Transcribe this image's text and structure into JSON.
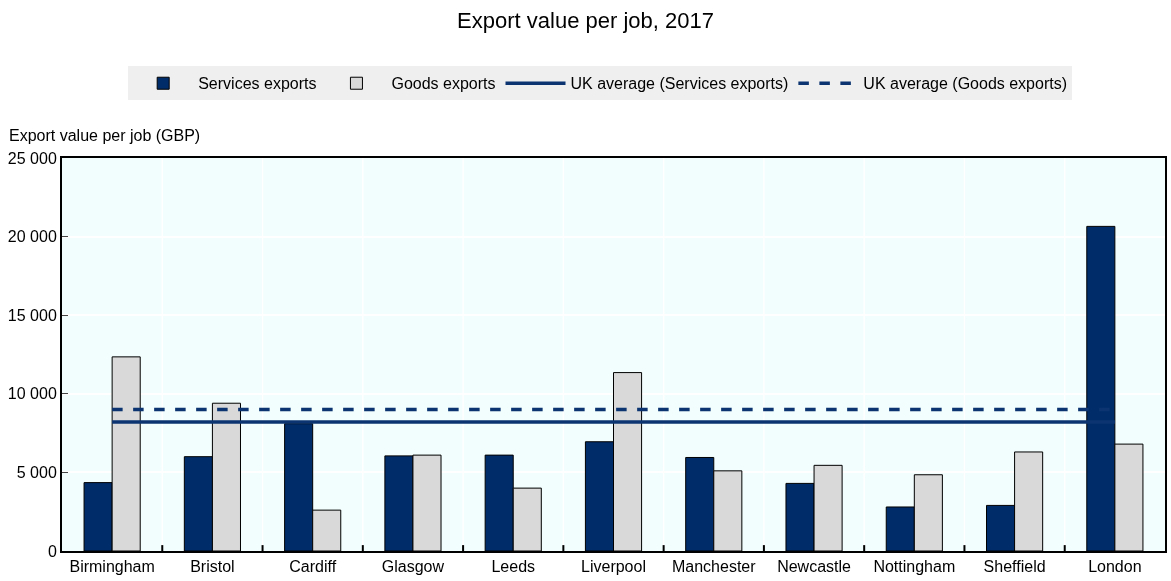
{
  "chart_data": {
    "type": "bar",
    "title": "Export value per job, 2017",
    "ylabel": "Export value per job (GBP)",
    "categories": [
      "Birmingham",
      "Bristol",
      "Cardiff",
      "Glasgow",
      "Leeds",
      "Liverpool",
      "Manchester",
      "Newcastle",
      "Nottingham",
      "Sheffield",
      "London"
    ],
    "series": [
      {
        "name": "Services exports",
        "color": "#002d6a",
        "values": [
          4350,
          6000,
          8100,
          6050,
          6100,
          6950,
          5950,
          4300,
          2800,
          2900,
          20650
        ]
      },
      {
        "name": "Goods exports",
        "color": "#d9d9d9",
        "values": [
          12350,
          9400,
          2600,
          6100,
          4000,
          11350,
          5100,
          5450,
          4850,
          6300,
          6800
        ]
      },
      {
        "name": "UK average (Services exports)",
        "type": "line",
        "line_style": "solid",
        "color": "#0b3470",
        "values": [
          8200,
          8200,
          8200,
          8200,
          8200,
          8200,
          8200,
          8200,
          8200,
          8200,
          8200
        ]
      },
      {
        "name": "UK average (Goods exports)",
        "type": "line",
        "line_style": "dashed",
        "color": "#0b3470",
        "values": [
          9000,
          9000,
          9000,
          9000,
          9000,
          9000,
          9000,
          9000,
          9000,
          9000,
          9000
        ]
      }
    ],
    "ylim": [
      0,
      25000
    ],
    "yticks": [
      0,
      {
        "value": 5000,
        "label": "5 000"
      },
      {
        "value": 10000,
        "label": "10 000"
      },
      {
        "value": 15000,
        "label": "15 000"
      },
      {
        "value": 20000,
        "label": "20 000"
      },
      {
        "value": 25000,
        "label": "25 000"
      }
    ],
    "grid": true,
    "legend": "top"
  }
}
